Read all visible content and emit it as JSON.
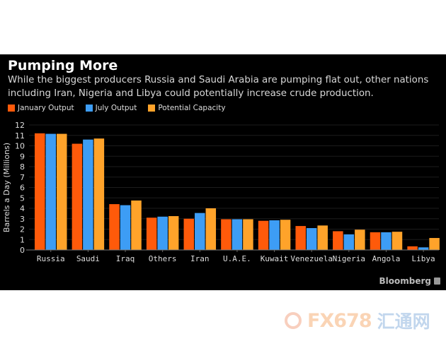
{
  "chart_data": {
    "type": "bar",
    "title": "Pumping More",
    "subtitle": "While the biggest producers Russia and Saudi Arabia are pumping flat out, other nations including Iran, Nigeria and Libya could potentially increase crude production.",
    "xlabel": "",
    "ylabel": "Barrels a Day (Millions)",
    "ylim": [
      0,
      12
    ],
    "yticks": [
      0,
      1,
      2,
      3,
      4,
      5,
      6,
      7,
      8,
      9,
      10,
      11,
      12
    ],
    "grid": true,
    "legend_position": "top-left",
    "categories": [
      "Russia",
      "Saudi",
      "Iraq",
      "Others",
      "Iran",
      "U.A.E.",
      "Kuwait",
      "Venezuela",
      "Nigeria",
      "Angola",
      "Libya"
    ],
    "series": [
      {
        "name": "January Output",
        "color": "#ff5a0a",
        "values": [
          11.2,
          10.2,
          4.4,
          3.1,
          3.0,
          2.95,
          2.8,
          2.3,
          1.8,
          1.7,
          0.35
        ]
      },
      {
        "name": "July Output",
        "color": "#3d9df5",
        "values": [
          11.15,
          10.6,
          4.3,
          3.2,
          3.55,
          2.95,
          2.85,
          2.1,
          1.5,
          1.7,
          0.25
        ]
      },
      {
        "name": "Potential Capacity",
        "color": "#ffa32a",
        "values": [
          11.15,
          10.7,
          4.75,
          3.25,
          4.0,
          2.95,
          2.9,
          2.35,
          1.95,
          1.75,
          1.15
        ]
      }
    ]
  },
  "source": {
    "credit": "Bloomberg"
  },
  "watermark": {
    "latin": "FX678",
    "cjk": "汇通网"
  }
}
